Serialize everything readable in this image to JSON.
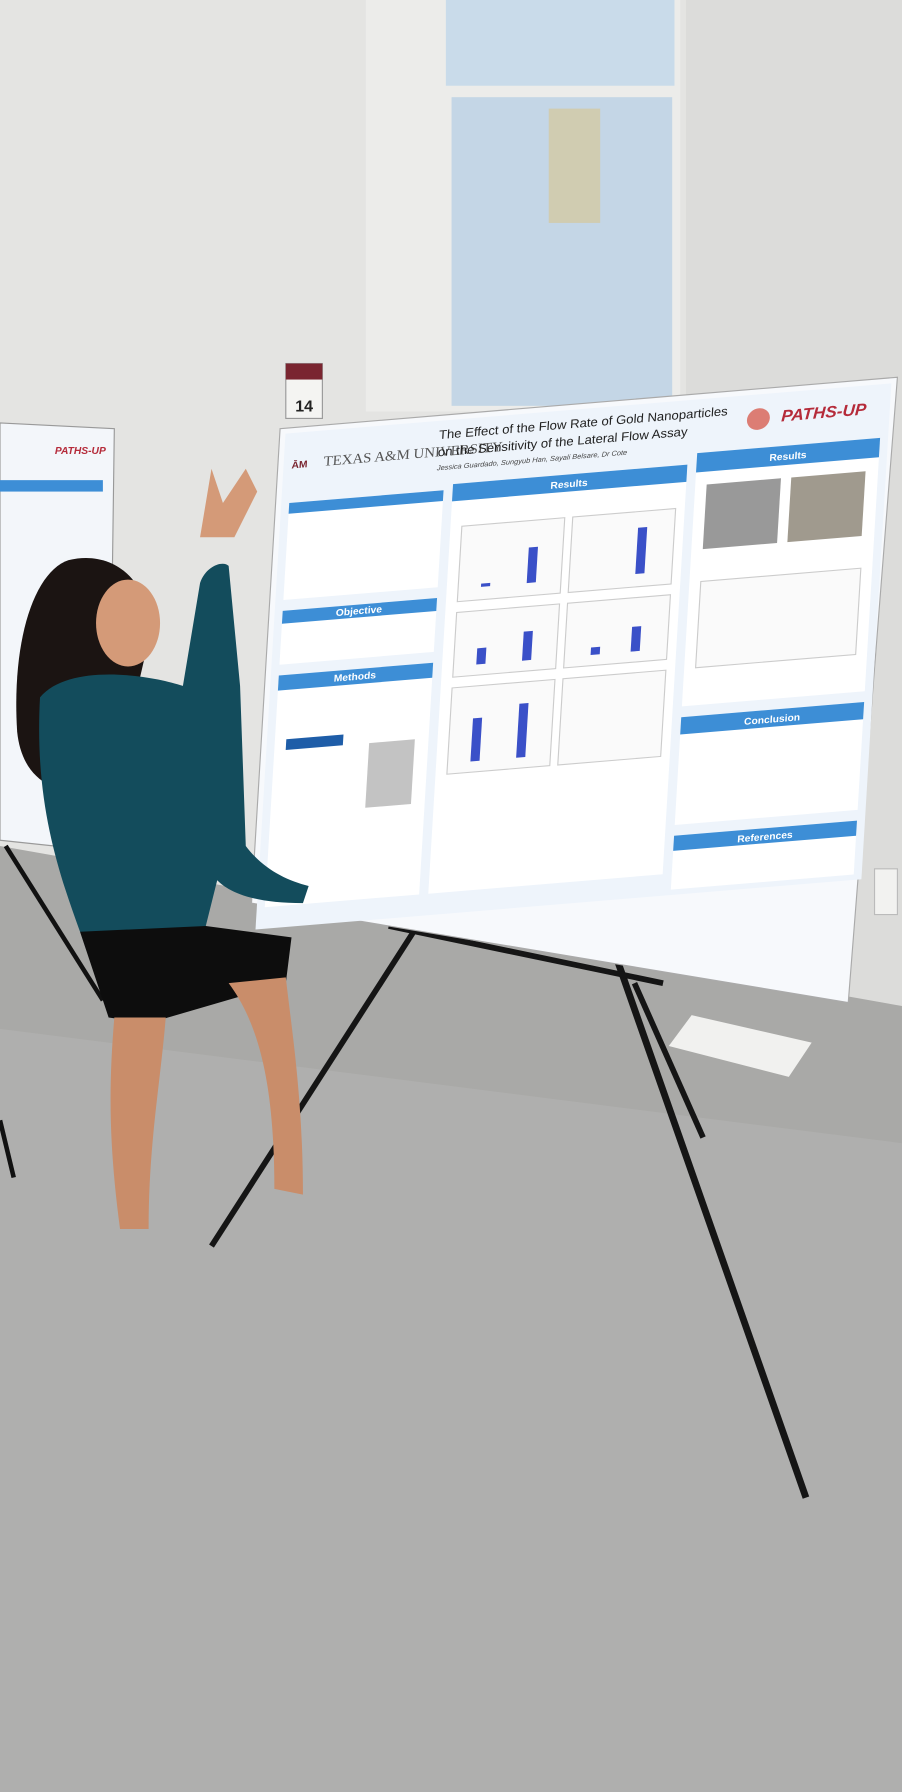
{
  "poster": {
    "board_number": "14",
    "university": "TEXAS A&M UNIVERSITY",
    "title_line1": "The Effect of the Flow Rate of Gold Nanoparticles",
    "title_line2": "on the Sensitivity of the Lateral Flow Assay",
    "authors": "Jessica Guardado, Sungyub Han, Sayali Belsare, Dr Cote",
    "logo": "PATHS-UP",
    "sections": {
      "objective": "Objective",
      "methods": "Methods",
      "results": "Results",
      "results_right": "Results",
      "conclusion": "Conclusion",
      "references": "References"
    }
  },
  "left_poster": {
    "logo": "PATHS-UP"
  }
}
